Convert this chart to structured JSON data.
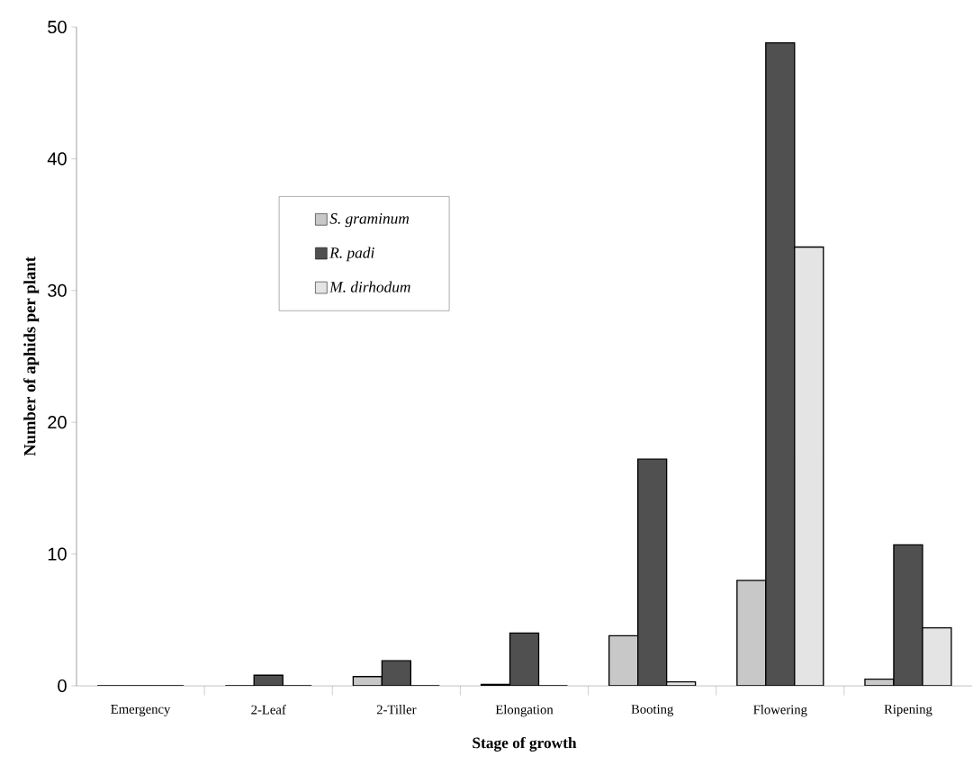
{
  "chart_data": {
    "type": "bar",
    "xlabel": "Stage of growth",
    "ylabel": "Number of aphids per plant",
    "categories": [
      "Emergency",
      "2-Leaf",
      "2-Tiller",
      "Elongation",
      "Booting",
      "Flowering",
      "Ripening"
    ],
    "series": [
      {
        "name": "S. graminum",
        "color": "#c8c8c8",
        "values": [
          0,
          0,
          0.7,
          0.1,
          3.8,
          8.0,
          0.5
        ]
      },
      {
        "name": "R. padi",
        "color": "#505050",
        "values": [
          0,
          0.8,
          1.9,
          4.0,
          17.2,
          48.8,
          10.7
        ]
      },
      {
        "name": "M. dirhodum",
        "color": "#e4e4e4",
        "values": [
          0,
          0,
          0,
          0,
          0.3,
          33.3,
          4.4
        ]
      }
    ],
    "ylim": [
      0,
      50
    ],
    "yticks": [
      0,
      10,
      20,
      30,
      40,
      50
    ],
    "grid": false,
    "legend": "top left"
  }
}
